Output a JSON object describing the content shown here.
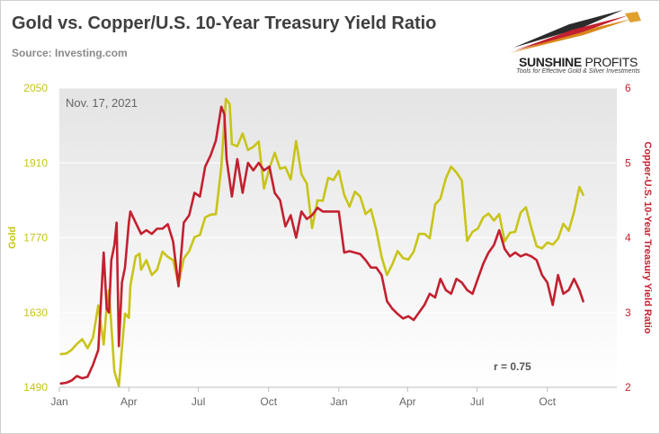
{
  "header": {
    "title": "Gold vs. Copper/U.S. 10-Year Treasury Yield Ratio",
    "source": "Source: Investing.com"
  },
  "logo": {
    "name_bold": "SUNSHINE",
    "name_rest": " PROFITS",
    "tagline": "Tools for Effective Gold & Silver Investments"
  },
  "annotations": {
    "date": "Nov. 17, 2021",
    "correlation": "r = 0.75"
  },
  "chart_data": {
    "type": "line",
    "title": "Gold vs. Copper/U.S. 10-Year Treasury Yield Ratio",
    "xlabel": "",
    "x_ticks": [
      "Jan",
      "Apr",
      "Jul",
      "Oct",
      "Jan",
      "Apr",
      "Jul",
      "Oct"
    ],
    "x_range": [
      "2020-01-01",
      "2021-12-31"
    ],
    "left_axis": {
      "label": "Gold",
      "ticks": [
        1490,
        1630,
        1770,
        1910,
        2050
      ],
      "range": [
        1490,
        2050
      ],
      "color": "#c8c417"
    },
    "right_axis": {
      "label": "Copper-U.S. 10-Year Treasury Yield Ratio",
      "ticks": [
        2,
        3,
        4,
        5,
        6
      ],
      "range": [
        2,
        6
      ],
      "color": "#c3202f"
    },
    "grid": true,
    "series": [
      {
        "name": "Gold",
        "axis": "left",
        "color": "#c8c417",
        "points": [
          [
            "2020-01-03",
            1552
          ],
          [
            "2020-01-10",
            1553
          ],
          [
            "2020-01-17",
            1560
          ],
          [
            "2020-01-24",
            1571
          ],
          [
            "2020-01-31",
            1580
          ],
          [
            "2020-02-07",
            1563
          ],
          [
            "2020-02-14",
            1583
          ],
          [
            "2020-02-21",
            1643
          ],
          [
            "2020-02-28",
            1570
          ],
          [
            "2020-03-03",
            1642
          ],
          [
            "2020-03-06",
            1672
          ],
          [
            "2020-03-13",
            1520
          ],
          [
            "2020-03-19",
            1492
          ],
          [
            "2020-03-23",
            1563
          ],
          [
            "2020-03-27",
            1628
          ],
          [
            "2020-04-01",
            1620
          ],
          [
            "2020-04-03",
            1680
          ],
          [
            "2020-04-10",
            1735
          ],
          [
            "2020-04-15",
            1740
          ],
          [
            "2020-04-17",
            1710
          ],
          [
            "2020-04-24",
            1728
          ],
          [
            "2020-05-01",
            1700
          ],
          [
            "2020-05-08",
            1710
          ],
          [
            "2020-05-15",
            1744
          ],
          [
            "2020-05-22",
            1734
          ],
          [
            "2020-05-29",
            1728
          ],
          [
            "2020-06-05",
            1683
          ],
          [
            "2020-06-12",
            1731
          ],
          [
            "2020-06-19",
            1745
          ],
          [
            "2020-06-26",
            1771
          ],
          [
            "2020-07-03",
            1775
          ],
          [
            "2020-07-10",
            1808
          ],
          [
            "2020-07-17",
            1813
          ],
          [
            "2020-07-24",
            1814
          ],
          [
            "2020-07-31",
            1902
          ],
          [
            "2020-08-06",
            2030
          ],
          [
            "2020-08-11",
            2020
          ],
          [
            "2020-08-14",
            1945
          ],
          [
            "2020-08-21",
            1941
          ],
          [
            "2020-08-28",
            1965
          ],
          [
            "2020-09-04",
            1934
          ],
          [
            "2020-09-11",
            1940
          ],
          [
            "2020-09-18",
            1950
          ],
          [
            "2020-09-25",
            1862
          ],
          [
            "2020-10-02",
            1900
          ],
          [
            "2020-10-09",
            1929
          ],
          [
            "2020-10-16",
            1899
          ],
          [
            "2020-10-23",
            1902
          ],
          [
            "2020-10-30",
            1879
          ],
          [
            "2020-11-06",
            1951
          ],
          [
            "2020-11-13",
            1889
          ],
          [
            "2020-11-20",
            1871
          ],
          [
            "2020-11-27",
            1788
          ],
          [
            "2020-12-04",
            1840
          ],
          [
            "2020-12-11",
            1839
          ],
          [
            "2020-12-18",
            1882
          ],
          [
            "2020-12-25",
            1878
          ],
          [
            "2021-01-01",
            1895
          ],
          [
            "2021-01-08",
            1850
          ],
          [
            "2021-01-15",
            1828
          ],
          [
            "2021-01-22",
            1856
          ],
          [
            "2021-01-29",
            1847
          ],
          [
            "2021-02-05",
            1814
          ],
          [
            "2021-02-12",
            1823
          ],
          [
            "2021-02-19",
            1784
          ],
          [
            "2021-02-26",
            1734
          ],
          [
            "2021-03-05",
            1700
          ],
          [
            "2021-03-12",
            1720
          ],
          [
            "2021-03-19",
            1745
          ],
          [
            "2021-03-26",
            1732
          ],
          [
            "2021-04-02",
            1729
          ],
          [
            "2021-04-09",
            1744
          ],
          [
            "2021-04-16",
            1777
          ],
          [
            "2021-04-23",
            1777
          ],
          [
            "2021-04-30",
            1769
          ],
          [
            "2021-05-07",
            1832
          ],
          [
            "2021-05-14",
            1843
          ],
          [
            "2021-05-21",
            1881
          ],
          [
            "2021-05-28",
            1903
          ],
          [
            "2021-06-04",
            1892
          ],
          [
            "2021-06-11",
            1877
          ],
          [
            "2021-06-18",
            1764
          ],
          [
            "2021-06-25",
            1781
          ],
          [
            "2021-07-02",
            1787
          ],
          [
            "2021-07-09",
            1808
          ],
          [
            "2021-07-16",
            1815
          ],
          [
            "2021-07-23",
            1802
          ],
          [
            "2021-07-30",
            1814
          ],
          [
            "2021-08-06",
            1763
          ],
          [
            "2021-08-13",
            1779
          ],
          [
            "2021-08-20",
            1781
          ],
          [
            "2021-08-27",
            1817
          ],
          [
            "2021-09-03",
            1827
          ],
          [
            "2021-09-10",
            1788
          ],
          [
            "2021-09-17",
            1754
          ],
          [
            "2021-09-24",
            1750
          ],
          [
            "2021-10-01",
            1761
          ],
          [
            "2021-10-08",
            1757
          ],
          [
            "2021-10-15",
            1768
          ],
          [
            "2021-10-22",
            1796
          ],
          [
            "2021-10-29",
            1783
          ],
          [
            "2021-11-05",
            1818
          ],
          [
            "2021-11-12",
            1865
          ],
          [
            "2021-11-17",
            1850
          ]
        ]
      },
      {
        "name": "Copper/U.S. 10-Year Treasury Yield Ratio",
        "axis": "right",
        "color": "#c3202f",
        "points": [
          [
            "2020-01-03",
            2.05
          ],
          [
            "2020-01-10",
            2.06
          ],
          [
            "2020-01-17",
            2.09
          ],
          [
            "2020-01-24",
            2.15
          ],
          [
            "2020-01-31",
            2.12
          ],
          [
            "2020-02-07",
            2.14
          ],
          [
            "2020-02-14",
            2.3
          ],
          [
            "2020-02-21",
            2.5
          ],
          [
            "2020-02-28",
            3.8
          ],
          [
            "2020-03-03",
            3.05
          ],
          [
            "2020-03-06",
            3.0
          ],
          [
            "2020-03-09",
            3.7
          ],
          [
            "2020-03-13",
            3.9
          ],
          [
            "2020-03-16",
            4.2
          ],
          [
            "2020-03-19",
            2.55
          ],
          [
            "2020-03-23",
            3.4
          ],
          [
            "2020-03-27",
            3.6
          ],
          [
            "2020-04-01",
            4.2
          ],
          [
            "2020-04-03",
            4.35
          ],
          [
            "2020-04-10",
            4.2
          ],
          [
            "2020-04-17",
            4.05
          ],
          [
            "2020-04-24",
            4.1
          ],
          [
            "2020-05-01",
            4.05
          ],
          [
            "2020-05-08",
            4.12
          ],
          [
            "2020-05-15",
            4.12
          ],
          [
            "2020-05-22",
            4.18
          ],
          [
            "2020-05-29",
            3.95
          ],
          [
            "2020-06-05",
            3.35
          ],
          [
            "2020-06-12",
            4.2
          ],
          [
            "2020-06-19",
            4.3
          ],
          [
            "2020-06-26",
            4.6
          ],
          [
            "2020-07-03",
            4.55
          ],
          [
            "2020-07-10",
            4.95
          ],
          [
            "2020-07-17",
            5.1
          ],
          [
            "2020-07-24",
            5.3
          ],
          [
            "2020-07-31",
            5.75
          ],
          [
            "2020-08-04",
            5.65
          ],
          [
            "2020-08-07",
            5.05
          ],
          [
            "2020-08-14",
            4.55
          ],
          [
            "2020-08-21",
            5.05
          ],
          [
            "2020-08-28",
            4.6
          ],
          [
            "2020-09-04",
            5.0
          ],
          [
            "2020-09-11",
            4.9
          ],
          [
            "2020-09-18",
            5.0
          ],
          [
            "2020-09-25",
            4.9
          ],
          [
            "2020-10-02",
            4.95
          ],
          [
            "2020-10-09",
            4.6
          ],
          [
            "2020-10-16",
            4.5
          ],
          [
            "2020-10-23",
            4.15
          ],
          [
            "2020-10-30",
            4.3
          ],
          [
            "2020-11-06",
            4.0
          ],
          [
            "2020-11-13",
            4.35
          ],
          [
            "2020-11-20",
            4.25
          ],
          [
            "2020-11-27",
            4.3
          ],
          [
            "2020-12-04",
            4.4
          ],
          [
            "2020-12-11",
            4.35
          ],
          [
            "2020-12-18",
            4.35
          ],
          [
            "2020-12-25",
            4.35
          ],
          [
            "2021-01-01",
            4.35
          ],
          [
            "2021-01-08",
            3.8
          ],
          [
            "2021-01-15",
            3.82
          ],
          [
            "2021-01-22",
            3.8
          ],
          [
            "2021-01-29",
            3.78
          ],
          [
            "2021-02-05",
            3.7
          ],
          [
            "2021-02-12",
            3.6
          ],
          [
            "2021-02-19",
            3.6
          ],
          [
            "2021-02-26",
            3.5
          ],
          [
            "2021-03-05",
            3.15
          ],
          [
            "2021-03-12",
            3.05
          ],
          [
            "2021-03-19",
            2.98
          ],
          [
            "2021-03-26",
            2.92
          ],
          [
            "2021-04-02",
            2.95
          ],
          [
            "2021-04-09",
            2.9
          ],
          [
            "2021-04-16",
            3.0
          ],
          [
            "2021-04-23",
            3.1
          ],
          [
            "2021-04-30",
            3.25
          ],
          [
            "2021-05-07",
            3.2
          ],
          [
            "2021-05-14",
            3.45
          ],
          [
            "2021-05-21",
            3.3
          ],
          [
            "2021-05-28",
            3.25
          ],
          [
            "2021-06-04",
            3.45
          ],
          [
            "2021-06-11",
            3.4
          ],
          [
            "2021-06-18",
            3.3
          ],
          [
            "2021-06-25",
            3.25
          ],
          [
            "2021-07-02",
            3.45
          ],
          [
            "2021-07-09",
            3.65
          ],
          [
            "2021-07-16",
            3.8
          ],
          [
            "2021-07-23",
            3.9
          ],
          [
            "2021-07-30",
            4.1
          ],
          [
            "2021-08-06",
            3.85
          ],
          [
            "2021-08-13",
            3.75
          ],
          [
            "2021-08-20",
            3.8
          ],
          [
            "2021-08-27",
            3.75
          ],
          [
            "2021-09-03",
            3.78
          ],
          [
            "2021-09-10",
            3.75
          ],
          [
            "2021-09-17",
            3.7
          ],
          [
            "2021-09-24",
            3.5
          ],
          [
            "2021-10-01",
            3.4
          ],
          [
            "2021-10-08",
            3.1
          ],
          [
            "2021-10-15",
            3.5
          ],
          [
            "2021-10-22",
            3.25
          ],
          [
            "2021-10-29",
            3.3
          ],
          [
            "2021-11-05",
            3.45
          ],
          [
            "2021-11-12",
            3.3
          ],
          [
            "2021-11-17",
            3.15
          ]
        ]
      }
    ]
  }
}
